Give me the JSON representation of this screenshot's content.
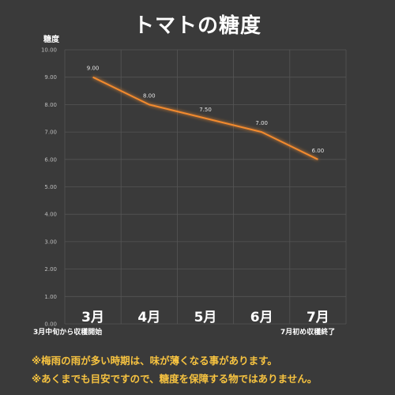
{
  "chart_data": {
    "type": "line",
    "title": "トマトの糖度",
    "ylabel": "糖度",
    "xlabel": "",
    "ylim": [
      0,
      10
    ],
    "yticks": [
      "0.00",
      "1.00",
      "2.00",
      "3.00",
      "4.00",
      "5.00",
      "6.00",
      "7.00",
      "8.00",
      "9.00",
      "10.00"
    ],
    "categories": [
      "3月",
      "4月",
      "5月",
      "6月",
      "7月"
    ],
    "values": [
      9.0,
      8.0,
      7.5,
      7.0,
      6.0
    ],
    "data_labels": [
      "9.00",
      "8.00",
      "7.50",
      "7.00",
      "6.00"
    ],
    "annotations": [
      "3月中旬から収穫開始",
      "7月初め収穫終了"
    ],
    "grid": true,
    "line_color": "#f28a2e",
    "grid_color": "#555555"
  },
  "notes": [
    "※梅雨の雨が多い時期は、味が薄くなる事があります。",
    "※あくまでも目安ですので、糖度を保障する物ではありません。"
  ],
  "colors": {
    "background": "#3a3a3a",
    "note_text": "#f7c340"
  }
}
